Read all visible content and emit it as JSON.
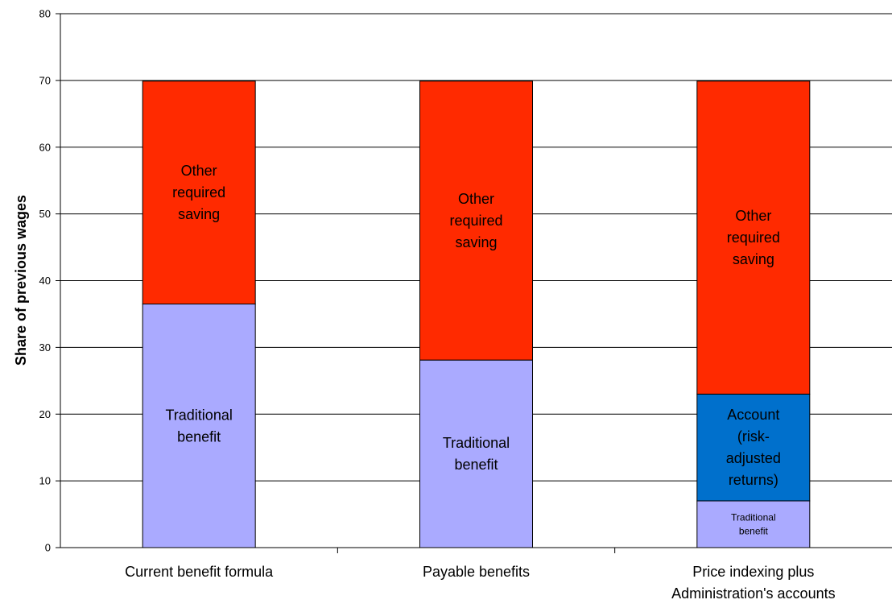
{
  "chart_data": {
    "type": "bar",
    "stacked": true,
    "title": "",
    "xlabel": "",
    "ylabel": "Share of previous wages",
    "ylim": [
      0,
      80
    ],
    "yticks": [
      0,
      10,
      20,
      30,
      40,
      50,
      60,
      70,
      80
    ],
    "grid": true,
    "legend": "none",
    "categories": [
      [
        "Current benefit formula"
      ],
      [
        "Payable benefits"
      ],
      [
        "Price indexing plus",
        "Administration's accounts"
      ]
    ],
    "colors": {
      "traditional": "#aaaaff",
      "account": "#0070cc",
      "other": "#ff2a00"
    },
    "bars": [
      {
        "segments": [
          {
            "key": "traditional",
            "value": 36.5,
            "label": [
              "Traditional",
              "benefit"
            ],
            "label_size": "large"
          },
          {
            "key": "other",
            "value": 33.4,
            "label": [
              "Other",
              "required",
              "saving"
            ],
            "label_size": "large"
          }
        ]
      },
      {
        "segments": [
          {
            "key": "traditional",
            "value": 28.1,
            "label": [
              "Traditional",
              "benefit"
            ],
            "label_size": "large"
          },
          {
            "key": "other",
            "value": 41.8,
            "label": [
              "Other",
              "required",
              "saving"
            ],
            "label_size": "large"
          }
        ]
      },
      {
        "segments": [
          {
            "key": "traditional",
            "value": 7.0,
            "label": [
              "Traditional",
              "benefit"
            ],
            "label_size": "small"
          },
          {
            "key": "account",
            "value": 16.0,
            "label": [
              "Account",
              "(risk-",
              "adjusted",
              "returns)"
            ],
            "label_size": "large"
          },
          {
            "key": "other",
            "value": 46.9,
            "label": [
              "Other",
              "required",
              "saving"
            ],
            "label_size": "large"
          }
        ]
      }
    ]
  }
}
